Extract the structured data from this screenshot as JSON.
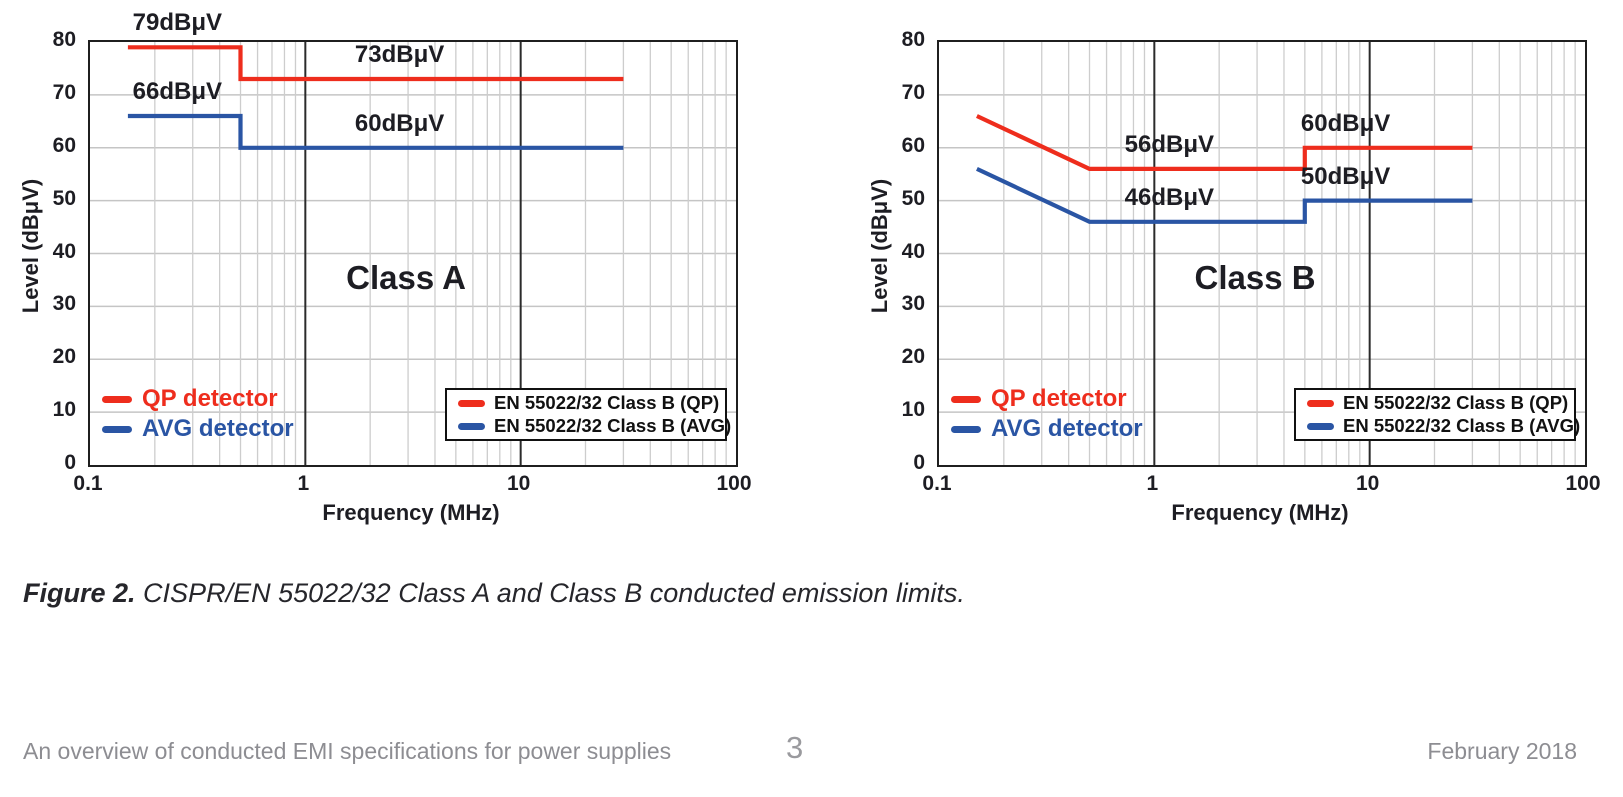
{
  "page": {
    "caption_label": "Figure 2.",
    "caption_text": "CISPR/EN 55022/32 Class A and Class B conducted emission limits.",
    "footer_left": "An overview of conducted EMI specifications for power supplies",
    "footer_page": "3",
    "footer_right": "February 2018"
  },
  "colors": {
    "qp": "#ee2d1d",
    "avg": "#2a55a4",
    "grid": "#c5c5c5",
    "grid_minor": "#cdcdcd",
    "decade": "#2b2b2b",
    "axis": "#1f1f1f",
    "text": "#1d1d23",
    "footer": "#8d8d92"
  },
  "chart_data": [
    {
      "type": "line",
      "title": "Class A",
      "title_pos": {
        "freq": 3.0,
        "db": 35
      },
      "xlabel": "Frequency (MHz)",
      "ylabel": "Level (dBμV)",
      "x_scale": "log",
      "xlim": [
        0.1,
        100
      ],
      "ylim": [
        0,
        80
      ],
      "x_ticks": [
        "0.1",
        "1",
        "10",
        "100"
      ],
      "y_ticks": [
        "0",
        "10",
        "20",
        "30",
        "40",
        "50",
        "60",
        "70",
        "80"
      ],
      "grid": true,
      "legend_position": "lower right",
      "series": [
        {
          "name": "EN 55022/32 Class B (QP)",
          "color_key": "qp",
          "points": [
            [
              0.15,
              79
            ],
            [
              0.5,
              79
            ],
            [
              0.5,
              73
            ],
            [
              30,
              73
            ]
          ]
        },
        {
          "name": "EN 55022/32 Class B (AVG)",
          "color_key": "avg",
          "points": [
            [
              0.15,
              66
            ],
            [
              0.5,
              66
            ],
            [
              0.5,
              60
            ],
            [
              30,
              60
            ]
          ]
        }
      ],
      "annotations": [
        {
          "text": "79dBμV",
          "freq": 0.26,
          "db": 79
        },
        {
          "text": "73dBμV",
          "freq": 2.8,
          "db": 73
        },
        {
          "text": "66dBμV",
          "freq": 0.26,
          "db": 66
        },
        {
          "text": "60dBμV",
          "freq": 2.8,
          "db": 60
        }
      ],
      "detector_labels": [
        {
          "text": "QP detector",
          "color_key": "qp"
        },
        {
          "text": "AVG detector",
          "color_key": "avg"
        }
      ],
      "legend": [
        {
          "text": "EN 55022/32 Class B (QP)",
          "color_key": "qp"
        },
        {
          "text": "EN 55022/32 Class B (AVG)",
          "color_key": "avg"
        }
      ]
    },
    {
      "type": "line",
      "title": "Class B",
      "title_pos": {
        "freq": 3.0,
        "db": 35
      },
      "xlabel": "Frequency (MHz)",
      "ylabel": "Level (dBμV)",
      "x_scale": "log",
      "xlim": [
        0.1,
        100
      ],
      "ylim": [
        0,
        80
      ],
      "x_ticks": [
        "0.1",
        "1",
        "10",
        "100"
      ],
      "y_ticks": [
        "0",
        "10",
        "20",
        "30",
        "40",
        "50",
        "60",
        "70",
        "80"
      ],
      "grid": true,
      "legend_position": "lower right",
      "series": [
        {
          "name": "EN 55022/32 Class B (QP)",
          "color_key": "qp",
          "points": [
            [
              0.15,
              66
            ],
            [
              0.5,
              56
            ],
            [
              5,
              56
            ],
            [
              5,
              60
            ],
            [
              30,
              60
            ]
          ]
        },
        {
          "name": "EN 55022/32 Class B (AVG)",
          "color_key": "avg",
          "points": [
            [
              0.15,
              56
            ],
            [
              0.5,
              46
            ],
            [
              5,
              46
            ],
            [
              5,
              50
            ],
            [
              30,
              50
            ]
          ]
        }
      ],
      "annotations": [
        {
          "text": "56dBμV",
          "freq": 1.2,
          "db": 56
        },
        {
          "text": "46dBμV",
          "freq": 1.2,
          "db": 46
        },
        {
          "text": "60dBμV",
          "freq": 7.9,
          "db": 60
        },
        {
          "text": "50dBμV",
          "freq": 7.9,
          "db": 50
        }
      ],
      "detector_labels": [
        {
          "text": "QP detector",
          "color_key": "qp"
        },
        {
          "text": "AVG detector",
          "color_key": "avg"
        }
      ],
      "legend": [
        {
          "text": "EN 55022/32 Class B (QP)",
          "color_key": "qp"
        },
        {
          "text": "EN 55022/32 Class B (AVG)",
          "color_key": "avg"
        }
      ]
    }
  ]
}
